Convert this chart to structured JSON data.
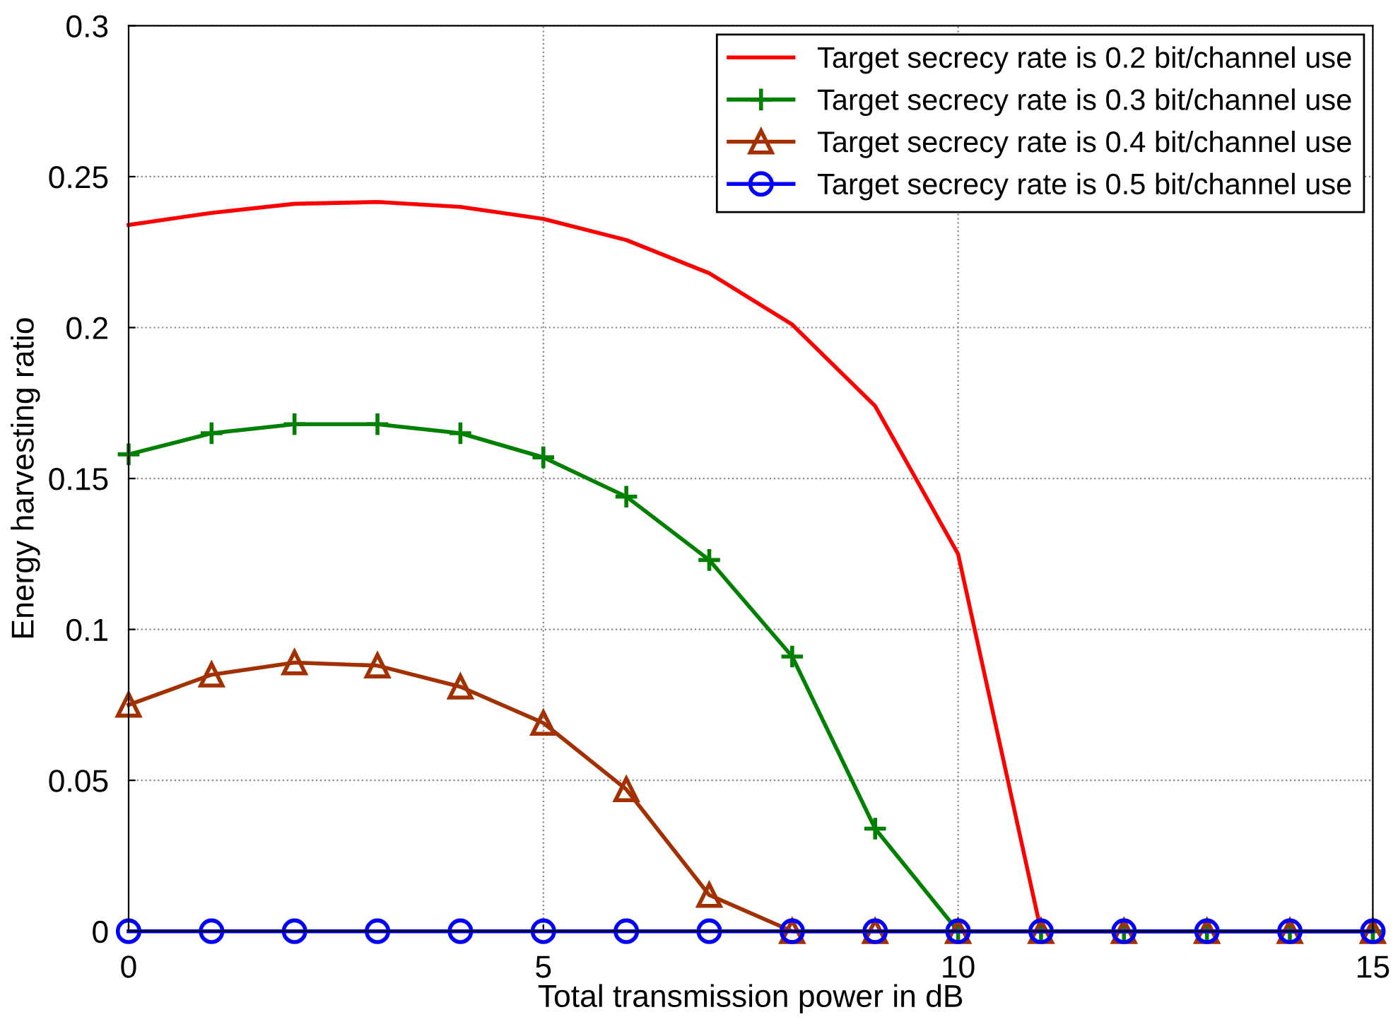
{
  "chart_data": {
    "type": "line",
    "xlabel": "Total transmission power in dB",
    "ylabel": "Energy harvesting ratio",
    "x": [
      0,
      1,
      2,
      3,
      4,
      5,
      6,
      7,
      8,
      9,
      10,
      11,
      12,
      13,
      14,
      15
    ],
    "series": [
      {
        "name": "Target secrecy rate is 0.2 bit/channel use",
        "color": "#ff0000",
        "marker": "none",
        "values": [
          0.234,
          0.238,
          0.241,
          0.2416,
          0.24,
          0.236,
          0.229,
          0.218,
          0.201,
          0.174,
          0.125,
          0,
          0,
          null,
          null,
          null
        ]
      },
      {
        "name": "Target secrecy rate is 0.3 bit/channel use",
        "color": "#008000",
        "marker": "cross",
        "values": [
          0.158,
          0.165,
          0.168,
          0.168,
          0.165,
          0.157,
          0.144,
          0.123,
          0.091,
          0.034,
          0,
          0,
          0,
          0,
          0,
          0
        ]
      },
      {
        "name": "Target secrecy rate is 0.4 bit/channel use",
        "color": "#a33000",
        "marker": "triangle",
        "values": [
          0.075,
          0.085,
          0.089,
          0.088,
          0.081,
          0.069,
          0.047,
          0.012,
          0,
          0,
          0,
          0,
          0,
          0,
          0,
          0
        ]
      },
      {
        "name": "Target secrecy rate is 0.5 bit/channel use",
        "color": "#0000ff",
        "marker": "circle",
        "values": [
          0,
          0,
          0,
          0,
          0,
          0,
          0,
          0,
          0,
          0,
          0,
          0,
          0,
          0,
          0,
          0
        ]
      }
    ],
    "xlim": [
      0,
      15
    ],
    "ylim": [
      0,
      0.3
    ],
    "xticks": [
      0,
      5,
      10,
      15
    ],
    "yticks": [
      0,
      0.05,
      0.1,
      0.15,
      0.2,
      0.25,
      0.3
    ],
    "grid": true,
    "legend": "top right",
    "line_style": "solid"
  }
}
